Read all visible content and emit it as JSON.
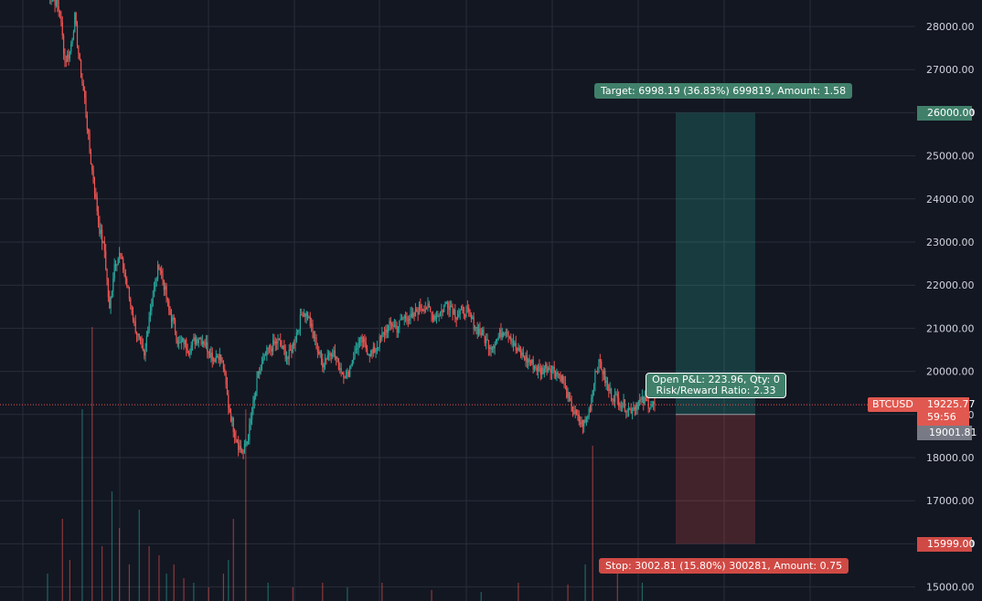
{
  "chart_data": {
    "type": "candlestick",
    "symbol": "BTCUSD",
    "ylim": [
      14800,
      28500
    ],
    "y_ticks": [
      "28000.00",
      "27000.00",
      "26000.00",
      "25000.00",
      "24000.00",
      "23000.00",
      "22000.00",
      "21000.00",
      "20000.00",
      "19000.00",
      "18000.00",
      "17000.00",
      "16000.00",
      "15000.00"
    ],
    "last_price": "19225.77",
    "countdown": "59:56",
    "entry_price": "19001.81",
    "target_price": "26000.00",
    "stop_price": "15999.00",
    "price_path": [
      [
        0,
        28800
      ],
      [
        6,
        28600
      ],
      [
        10,
        28300
      ],
      [
        14,
        27200
      ],
      [
        18,
        27400
      ],
      [
        22,
        28200
      ],
      [
        26,
        27100
      ],
      [
        30,
        26300
      ],
      [
        34,
        25100
      ],
      [
        38,
        24200
      ],
      [
        42,
        23300
      ],
      [
        46,
        22800
      ],
      [
        50,
        21400
      ],
      [
        54,
        22500
      ],
      [
        58,
        22700
      ],
      [
        62,
        22300
      ],
      [
        66,
        21700
      ],
      [
        70,
        21100
      ],
      [
        74,
        20700
      ],
      [
        78,
        20300
      ],
      [
        82,
        21300
      ],
      [
        86,
        21900
      ],
      [
        90,
        22500
      ],
      [
        94,
        22000
      ],
      [
        98,
        21400
      ],
      [
        102,
        21100
      ],
      [
        106,
        20600
      ],
      [
        110,
        20700
      ],
      [
        114,
        20500
      ],
      [
        118,
        20700
      ],
      [
        122,
        20800
      ],
      [
        126,
        20700
      ],
      [
        130,
        20500
      ],
      [
        134,
        20300
      ],
      [
        138,
        20400
      ],
      [
        142,
        20100
      ],
      [
        146,
        19200
      ],
      [
        150,
        18700
      ],
      [
        154,
        18300
      ],
      [
        158,
        18100
      ],
      [
        162,
        18500
      ],
      [
        166,
        19200
      ],
      [
        170,
        19900
      ],
      [
        174,
        20200
      ],
      [
        178,
        20500
      ],
      [
        182,
        20600
      ],
      [
        186,
        20700
      ],
      [
        190,
        20500
      ],
      [
        194,
        20300
      ],
      [
        198,
        20600
      ],
      [
        202,
        21000
      ],
      [
        206,
        21400
      ],
      [
        210,
        21300
      ],
      [
        214,
        20900
      ],
      [
        218,
        20500
      ],
      [
        222,
        20200
      ],
      [
        226,
        20400
      ],
      [
        230,
        20500
      ],
      [
        234,
        20200
      ],
      [
        238,
        20000
      ],
      [
        242,
        19900
      ],
      [
        246,
        20300
      ],
      [
        250,
        20600
      ],
      [
        254,
        20700
      ],
      [
        258,
        20500
      ],
      [
        262,
        20400
      ],
      [
        266,
        20600
      ],
      [
        270,
        20800
      ],
      [
        274,
        21000
      ],
      [
        278,
        21100
      ],
      [
        282,
        21000
      ],
      [
        286,
        21200
      ],
      [
        290,
        21300
      ],
      [
        294,
        21200
      ],
      [
        298,
        21400
      ],
      [
        302,
        21500
      ],
      [
        306,
        21500
      ],
      [
        310,
        21300
      ],
      [
        314,
        21300
      ],
      [
        318,
        21400
      ],
      [
        322,
        21600
      ],
      [
        326,
        21500
      ],
      [
        330,
        21300
      ],
      [
        334,
        21400
      ],
      [
        338,
        21400
      ],
      [
        342,
        21200
      ],
      [
        346,
        21000
      ],
      [
        350,
        20900
      ],
      [
        354,
        20700
      ],
      [
        358,
        20600
      ],
      [
        362,
        20700
      ],
      [
        366,
        20900
      ],
      [
        370,
        21000
      ],
      [
        374,
        20800
      ],
      [
        378,
        20500
      ],
      [
        382,
        20400
      ],
      [
        386,
        20300
      ],
      [
        390,
        20200
      ],
      [
        394,
        20100
      ],
      [
        398,
        20000
      ],
      [
        402,
        20100
      ],
      [
        406,
        20100
      ],
      [
        410,
        20000
      ],
      [
        414,
        19900
      ],
      [
        418,
        19600
      ],
      [
        422,
        19200
      ],
      [
        426,
        19000
      ],
      [
        430,
        18800
      ],
      [
        434,
        18800
      ],
      [
        438,
        19200
      ],
      [
        442,
        20000
      ],
      [
        446,
        20200
      ],
      [
        450,
        19800
      ],
      [
        454,
        19500
      ],
      [
        458,
        19400
      ],
      [
        462,
        19300
      ],
      [
        466,
        19200
      ],
      [
        470,
        19100
      ],
      [
        474,
        19200
      ],
      [
        478,
        19300
      ],
      [
        482,
        19300
      ],
      [
        486,
        19250
      ],
      [
        490,
        19230
      ]
    ],
    "volume_spikes": [
      [
        0,
        30
      ],
      [
        12,
        90
      ],
      [
        18,
        45
      ],
      [
        28,
        210
      ],
      [
        36,
        300
      ],
      [
        44,
        60
      ],
      [
        52,
        120
      ],
      [
        58,
        80
      ],
      [
        66,
        40
      ],
      [
        74,
        100
      ],
      [
        82,
        60
      ],
      [
        90,
        50
      ],
      [
        96,
        30
      ],
      [
        102,
        40
      ],
      [
        110,
        25
      ],
      [
        118,
        20
      ],
      [
        130,
        15
      ],
      [
        142,
        30
      ],
      [
        146,
        45
      ],
      [
        150,
        90
      ],
      [
        160,
        210
      ],
      [
        178,
        20
      ],
      [
        198,
        15
      ],
      [
        222,
        20
      ],
      [
        242,
        15
      ],
      [
        270,
        20
      ],
      [
        310,
        12
      ],
      [
        350,
        10
      ],
      [
        380,
        20
      ],
      [
        420,
        18
      ],
      [
        434,
        40
      ],
      [
        440,
        170
      ],
      [
        460,
        30
      ],
      [
        480,
        20
      ]
    ],
    "position": {
      "target_text": "Target: 6998.19 (36.83%) 699819, Amount: 1.58",
      "stop_text": "Stop: 3002.81 (15.80%) 300281, Amount: 0.75",
      "pnl_line1": "Open P&L: 223.96, Qty: 0",
      "pnl_line2": "Risk/Reward Ratio: 2.33"
    }
  },
  "colors": {
    "background": "#131722",
    "grid": "#2a2e39",
    "up": "#26a69a",
    "down": "#ef5350",
    "target_zone": "rgba(38,166,154,0.25)",
    "stop_zone": "rgba(239,83,80,0.22)",
    "axis_text": "#d1d4dc"
  }
}
